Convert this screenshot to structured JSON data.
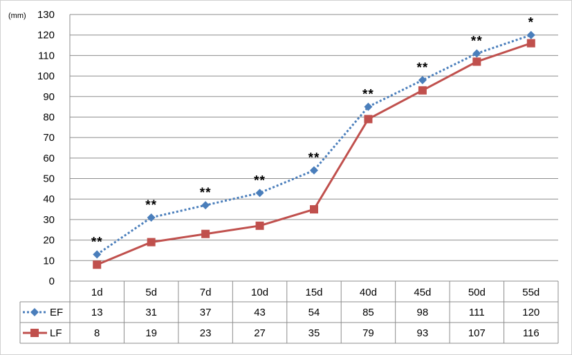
{
  "chart_data": {
    "type": "line",
    "unit_label": "(mm)",
    "categories": [
      "1d",
      "5d",
      "7d",
      "10d",
      "15d",
      "40d",
      "45d",
      "50d",
      "55d"
    ],
    "ylim": [
      0,
      130
    ],
    "ytick_step": 10,
    "grid": true,
    "legend_placement": "data-table-left",
    "series": [
      {
        "name": "EF",
        "values": [
          13,
          31,
          37,
          43,
          54,
          85,
          98,
          111,
          120
        ],
        "table_values": [
          "13",
          "31",
          "37",
          "43",
          "54",
          "85",
          "98",
          "111",
          "120"
        ],
        "color": "#4a7ebb",
        "line_style": "dotted",
        "marker": "diamond"
      },
      {
        "name": "LF",
        "values": [
          8,
          19,
          23,
          27,
          35,
          79,
          93,
          107,
          116
        ],
        "table_values": [
          "8",
          "19",
          "23",
          "27",
          "35",
          "79",
          "93",
          "107",
          "116"
        ],
        "color": "#c0504d",
        "line_style": "solid",
        "marker": "square"
      }
    ],
    "annotations": [
      "**",
      "**",
      "**",
      "**",
      "**",
      "**",
      "**",
      "**",
      "*"
    ]
  }
}
